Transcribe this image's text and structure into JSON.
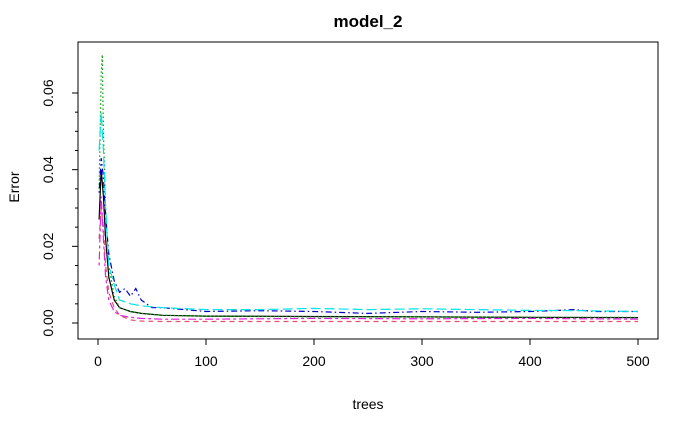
{
  "chart_data": {
    "type": "line",
    "title": "model_2",
    "xlabel": "trees",
    "ylabel": "Error",
    "xlim": [
      1,
      500
    ],
    "ylim": [
      0,
      0.07
    ],
    "xticks": [
      0,
      100,
      200,
      300,
      400,
      500
    ],
    "xtick_labels": [
      "0",
      "100",
      "200",
      "300",
      "400",
      "500"
    ],
    "yticks": [
      0,
      0.02,
      0.04,
      0.06
    ],
    "ytick_labels": [
      "0.00",
      "0.02",
      "0.04",
      "0.06"
    ],
    "grid": false,
    "legend": "none",
    "series": [
      {
        "color": "#000000",
        "dash": "solid",
        "x": [
          1,
          3,
          5,
          7,
          10,
          15,
          20,
          30,
          40,
          60,
          100,
          200,
          300,
          400,
          500
        ],
        "y": [
          0.027,
          0.04,
          0.033,
          0.022,
          0.012,
          0.006,
          0.004,
          0.003,
          0.0025,
          0.002,
          0.0018,
          0.0017,
          0.0016,
          0.0015,
          0.0014
        ]
      },
      {
        "color": "#DF536B",
        "dash": "dashed",
        "x": [
          1,
          3,
          5,
          7,
          10,
          15,
          20,
          30,
          40,
          60,
          100,
          200,
          300,
          400,
          500
        ],
        "y": [
          0.022,
          0.03,
          0.025,
          0.015,
          0.008,
          0.004,
          0.002,
          0.0008,
          0.0005,
          0.0004,
          0.0004,
          0.0004,
          0.0004,
          0.0004,
          0.0004
        ]
      },
      {
        "color": "#00A000",
        "dash": "dotted",
        "x": [
          1,
          3,
          4,
          5,
          7,
          10,
          15,
          20,
          30,
          40,
          60,
          100,
          200,
          300,
          400,
          500
        ],
        "y": [
          0.035,
          0.065,
          0.07,
          0.05,
          0.03,
          0.015,
          0.007,
          0.004,
          0.003,
          0.0025,
          0.002,
          0.0018,
          0.0016,
          0.0016,
          0.0015,
          0.0015
        ]
      },
      {
        "color": "#0000CC",
        "dash": "dotdash",
        "x": [
          1,
          3,
          5,
          7,
          10,
          15,
          20,
          25,
          30,
          35,
          40,
          50,
          60,
          80,
          100,
          150,
          200,
          250,
          300,
          350,
          400,
          420,
          440,
          460,
          500
        ],
        "y": [
          0.034,
          0.043,
          0.038,
          0.028,
          0.018,
          0.011,
          0.008,
          0.009,
          0.007,
          0.009,
          0.006,
          0.004,
          0.004,
          0.0035,
          0.003,
          0.0032,
          0.003,
          0.0025,
          0.003,
          0.0028,
          0.003,
          0.0032,
          0.0035,
          0.003,
          0.003
        ]
      },
      {
        "color": "#00E5E5",
        "dash": "longdash",
        "x": [
          1,
          3,
          5,
          7,
          10,
          15,
          20,
          30,
          40,
          60,
          100,
          150,
          200,
          250,
          300,
          350,
          400,
          450,
          500
        ],
        "y": [
          0.045,
          0.055,
          0.045,
          0.03,
          0.015,
          0.01,
          0.006,
          0.005,
          0.0045,
          0.004,
          0.0035,
          0.0035,
          0.0038,
          0.0035,
          0.0037,
          0.0035,
          0.0033,
          0.0032,
          0.003
        ]
      },
      {
        "color": "#E020E0",
        "dash": "twodash",
        "x": [
          1,
          3,
          5,
          7,
          10,
          15,
          20,
          30,
          40,
          60,
          100,
          200,
          300,
          400,
          500
        ],
        "y": [
          0.015,
          0.033,
          0.022,
          0.012,
          0.006,
          0.003,
          0.002,
          0.0015,
          0.0012,
          0.001,
          0.001,
          0.0012,
          0.0011,
          0.0012,
          0.001
        ]
      }
    ]
  }
}
